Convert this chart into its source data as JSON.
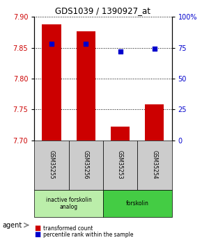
{
  "title": "GDS1039 / 1390927_at",
  "samples": [
    "GSM35255",
    "GSM35256",
    "GSM35253",
    "GSM35254"
  ],
  "bar_values": [
    7.888,
    7.876,
    7.722,
    7.758
  ],
  "percentile_values": [
    78,
    78,
    72,
    74
  ],
  "y_min": 7.7,
  "y_max": 7.9,
  "y_ticks": [
    7.7,
    7.75,
    7.8,
    7.85,
    7.9
  ],
  "y2_ticks": [
    0,
    25,
    50,
    75,
    100
  ],
  "y2_labels": [
    "0",
    "25",
    "50",
    "75",
    "100%"
  ],
  "bar_color": "#cc0000",
  "dot_color": "#0000cc",
  "bar_width": 0.55,
  "groups": [
    {
      "label": "inactive forskolin\nanalog",
      "samples": [
        "GSM35255",
        "GSM35256"
      ],
      "color": "#bbeeaa"
    },
    {
      "label": "forskolin",
      "samples": [
        "GSM35253",
        "GSM35254"
      ],
      "color": "#44cc44"
    }
  ],
  "agent_label": "agent",
  "legend_bar_label": "transformed count",
  "legend_dot_label": "percentile rank within the sample",
  "title_color": "#000000",
  "left_tick_color": "#cc0000",
  "right_tick_color": "#0000cc",
  "grid_color": "#000000",
  "background_color": "#ffffff",
  "plot_area_color": "#ffffff",
  "label_area_color": "#cccccc"
}
